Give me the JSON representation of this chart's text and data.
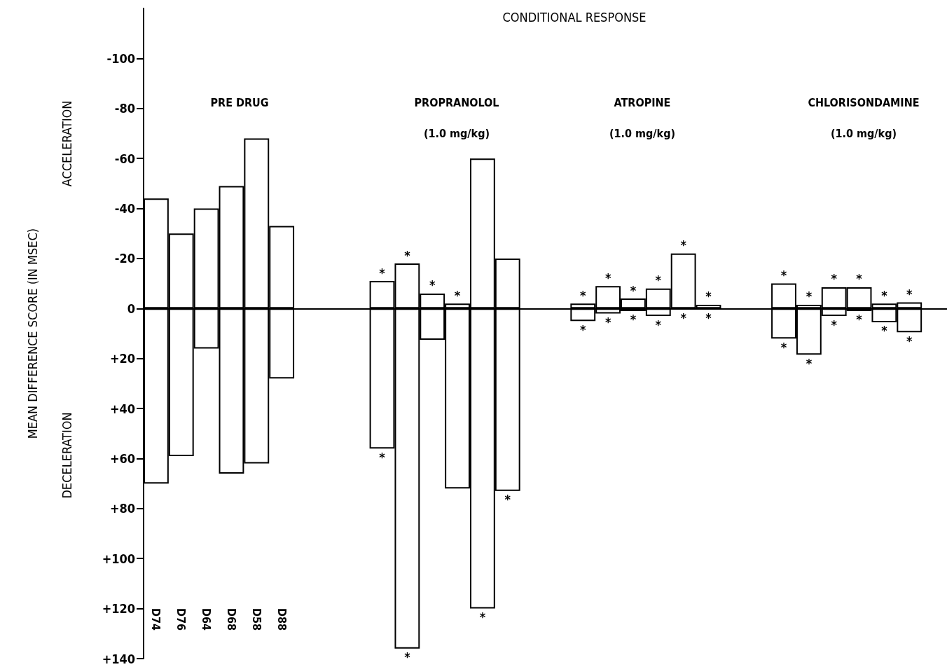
{
  "chart_data": {
    "type": "bar",
    "title": "CONDITIONAL RESPONSE",
    "ylabel": "MEAN DIFFERENCE SCORE (IN MSEC)",
    "annotations": [
      "ACCELERATION",
      "DECELERATION",
      "PRE DRUG",
      "PROPRANOLOL",
      "(1.0 mg/kg)",
      "ATROPINE",
      "(1.0 mg/kg)",
      "CHLORISONDAMINE",
      "(1.0 mg/kg)"
    ],
    "categories": [
      "D74",
      "D76",
      "D64",
      "D68",
      "D58",
      "D88",
      null,
      null,
      null,
      null,
      null,
      null,
      null,
      null,
      null,
      null,
      null,
      null,
      null,
      null,
      null,
      null,
      null,
      null,
      null,
      null,
      null,
      null,
      null,
      null,
      null,
      null
    ],
    "series": [
      {
        "color": "#000000",
        "values": [
          -44,
          -30,
          -40,
          -49,
          -68,
          -33,
          null,
          null,
          null,
          -11,
          -18,
          -6,
          -2,
          -60,
          -20,
          null,
          null,
          -2,
          -9,
          -4,
          -8,
          -22,
          -1.5,
          null,
          null,
          -10,
          -1.5,
          -8.5,
          -8.5,
          -2,
          -2.5,
          null
        ],
        "value_labels": [
          null,
          null,
          null,
          null,
          null,
          null,
          null,
          null,
          null,
          "*",
          "*",
          "*",
          "*",
          null,
          null,
          null,
          null,
          "*",
          "*",
          "*",
          "*",
          "*",
          "*",
          null,
          null,
          "*",
          "*",
          "*",
          "*",
          "*",
          "*",
          null
        ]
      },
      {
        "color": "#000000",
        "values": [
          70,
          59,
          16,
          66,
          62,
          28,
          null,
          null,
          null,
          56,
          136,
          12.5,
          72,
          120,
          73,
          null,
          null,
          5,
          2,
          1,
          3,
          0,
          0,
          null,
          null,
          12,
          18.5,
          3,
          1,
          5.5,
          9.5,
          null
        ],
        "value_labels": [
          null,
          null,
          null,
          null,
          null,
          null,
          null,
          null,
          null,
          "*",
          "*",
          null,
          null,
          "*",
          "*",
          null,
          null,
          "*",
          "*",
          "*",
          "*",
          "*",
          "*",
          null,
          null,
          "*",
          "*",
          "*",
          "*",
          "*",
          "*",
          null
        ]
      }
    ],
    "ylim": [
      140,
      -120
    ],
    "yticks": [
      -100,
      -80,
      -60,
      -40,
      -20,
      0,
      {
        "value": 20,
        "label": "+20"
      },
      {
        "value": 40,
        "label": "+40"
      },
      {
        "value": 60,
        "label": "+60"
      },
      {
        "value": 80,
        "label": "+80"
      },
      {
        "value": 100,
        "label": "+100"
      },
      {
        "value": 120,
        "label": "+120"
      },
      {
        "value": 140,
        "label": "+140"
      }
    ],
    "stacked": true,
    "ref_lines": [
      {
        "axis": "y",
        "value": 0,
        "color": "#000000"
      }
    ],
    "grid": false
  }
}
